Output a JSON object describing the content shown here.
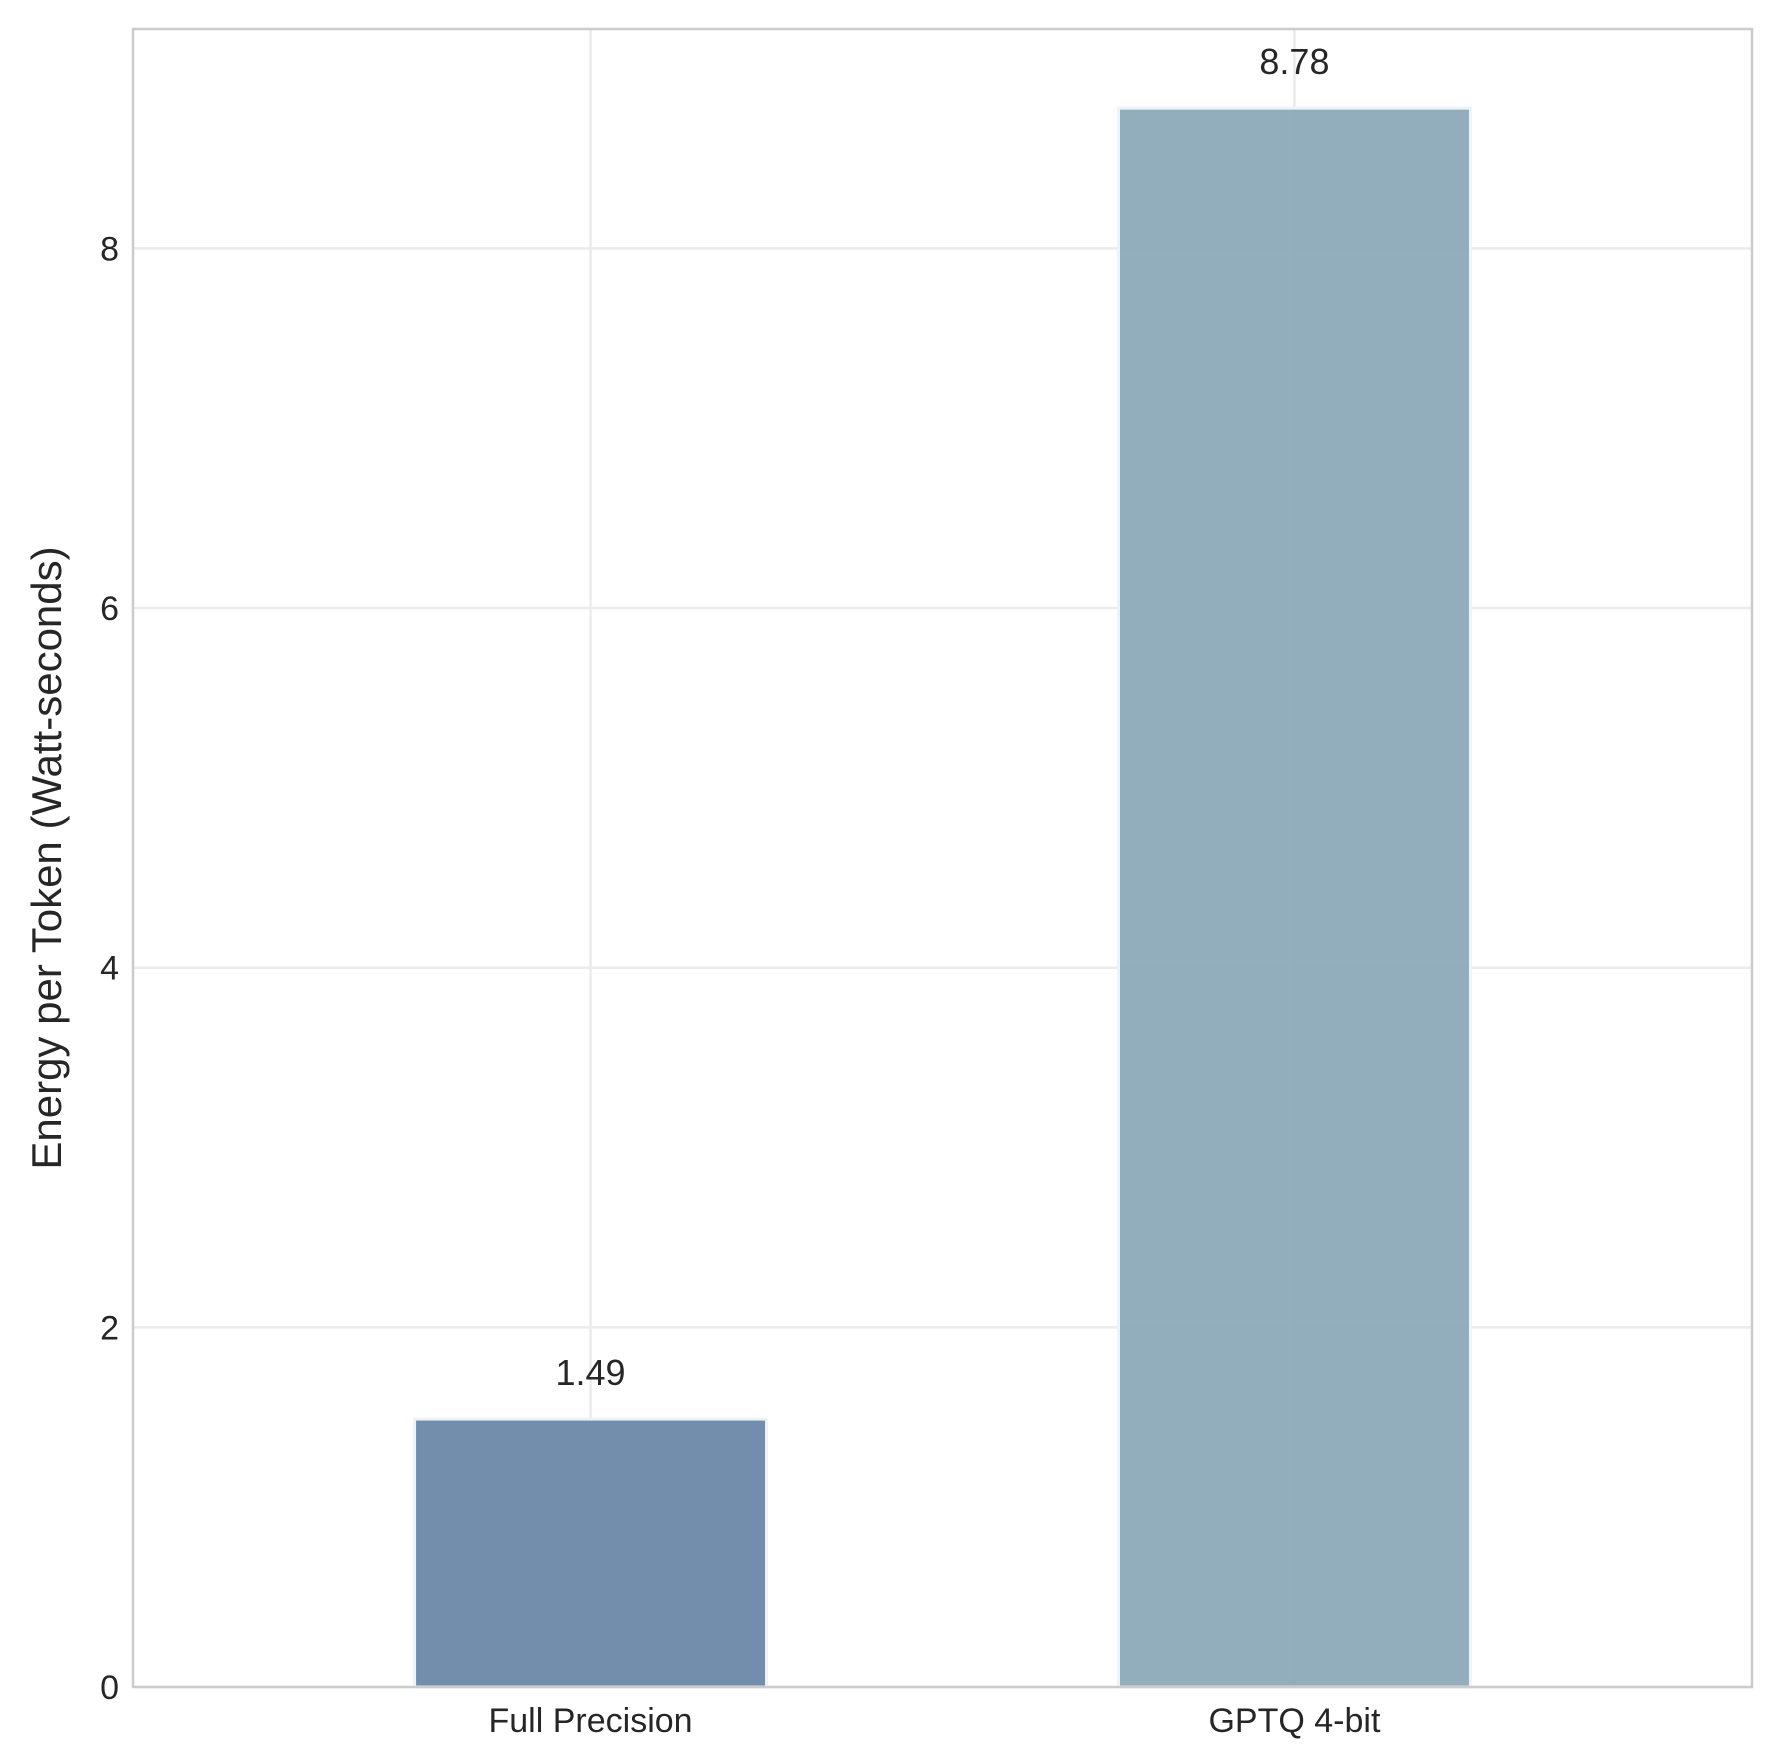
{
  "chart_data": {
    "type": "bar",
    "categories": [
      "Full Precision",
      "GPTQ 4-bit"
    ],
    "values": [
      1.49,
      8.78
    ],
    "data_labels": [
      "1.49",
      "8.78"
    ],
    "title": "",
    "xlabel": "",
    "ylabel": "Energy per Token (Watt-seconds)",
    "ylim": [
      0,
      9.22
    ],
    "yticks": [
      0,
      2,
      4,
      6,
      8
    ],
    "ytick_labels": [
      "0",
      "2",
      "4",
      "6",
      "8"
    ],
    "grid": true,
    "bar_colors": [
      "#6c88a8",
      "#8ca9b8"
    ],
    "grid_color": "#ebebeb",
    "frame_color": "#cccccc"
  }
}
